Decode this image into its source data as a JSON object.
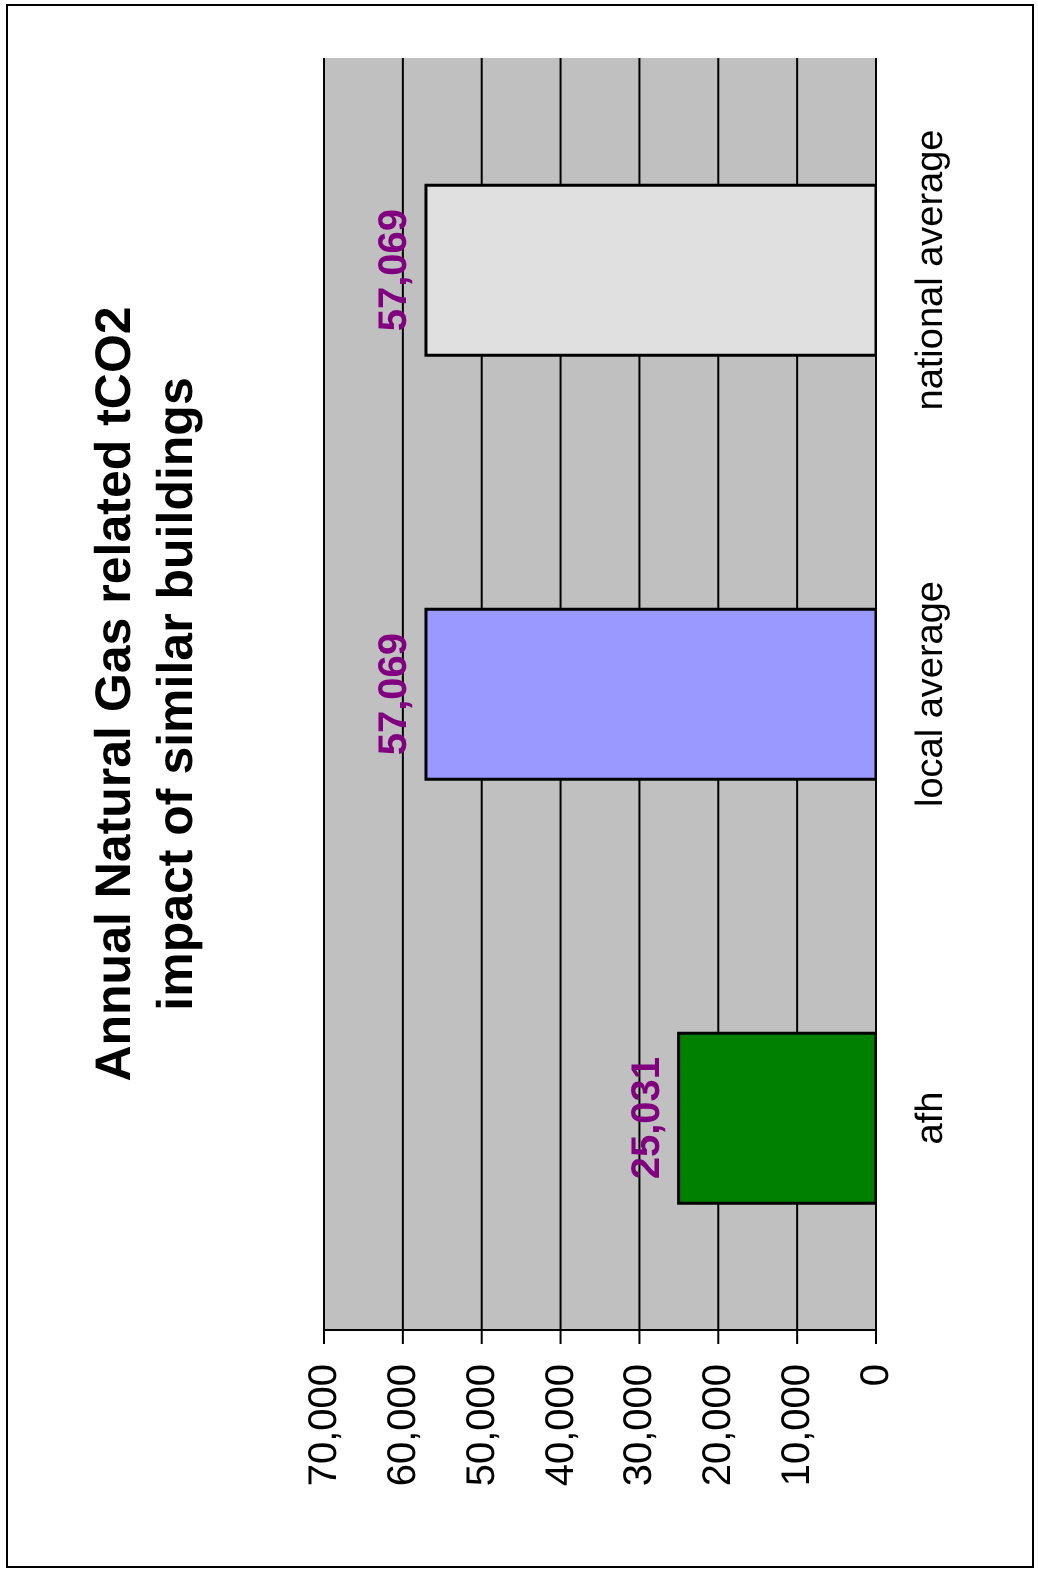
{
  "chart_data": {
    "type": "bar",
    "orientation": "horizontal",
    "title": "Annual Natural Gas related tCO2\nimpact of similar buildings",
    "categories": [
      "national average",
      "local average",
      "afh"
    ],
    "values": [
      57069,
      57069,
      25031
    ],
    "value_labels": [
      "57,069",
      "57,069",
      "25,031"
    ],
    "colors": [
      "#e0e0e0",
      "#9999ff",
      "#008000"
    ],
    "xlim": [
      70000,
      0
    ],
    "xticks": [
      {
        "value": 70000,
        "label": "70,000"
      },
      {
        "value": 60000,
        "label": "60,000"
      },
      {
        "value": 50000,
        "label": "50,000"
      },
      {
        "value": 40000,
        "label": "40,000"
      },
      {
        "value": 30000,
        "label": "30,000"
      },
      {
        "value": 20000,
        "label": "20,000"
      },
      {
        "value": 10000,
        "label": "10,000"
      },
      0
    ],
    "grid": "x"
  }
}
